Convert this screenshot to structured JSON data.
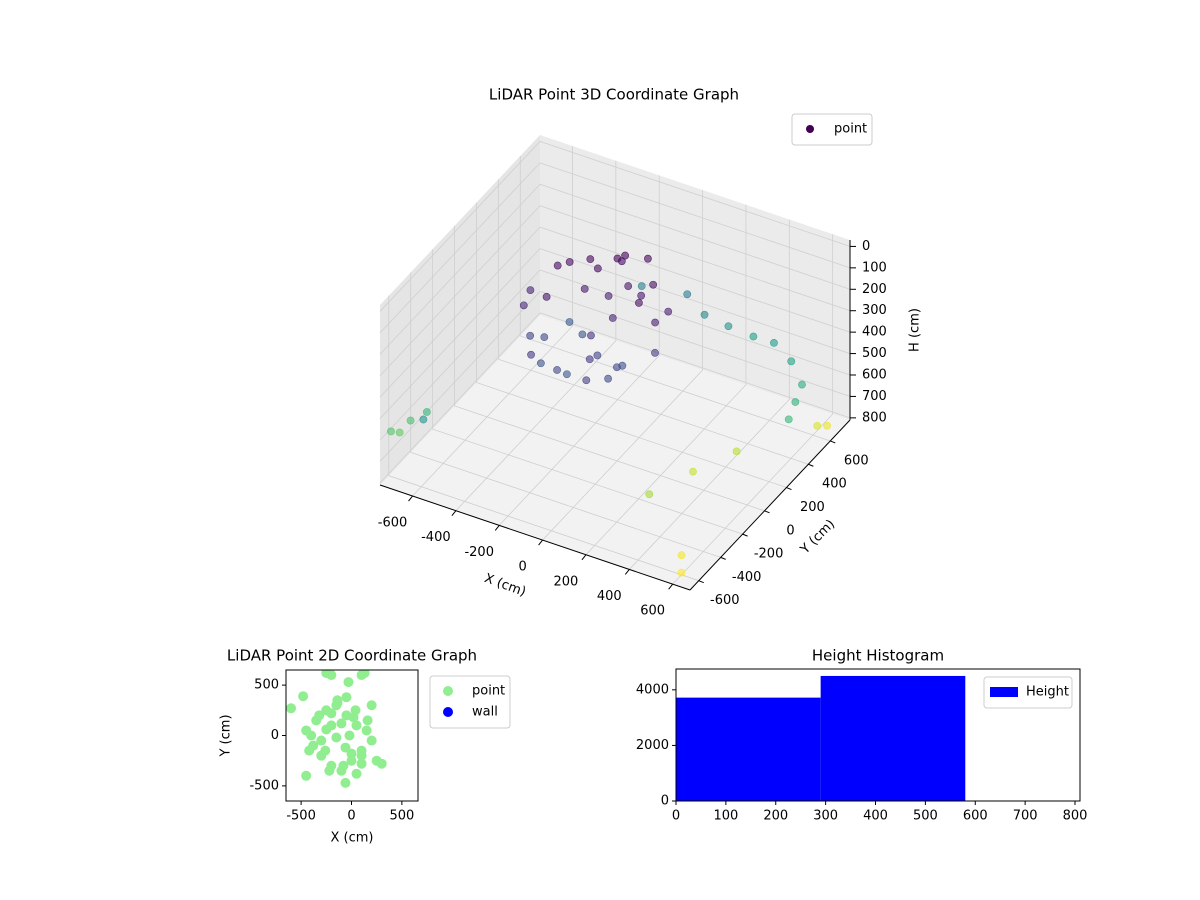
{
  "chart_data": [
    {
      "type": "scatter3d",
      "title": "LiDAR Point 3D Coordinate Graph",
      "xlabel": "X (cm)",
      "ylabel": "Y (cm)",
      "zlabel": "H (cm)",
      "xlim": [
        -750,
        680
      ],
      "ylim": [
        -680,
        780
      ],
      "zlim": [
        810,
        -30
      ],
      "xticks": [
        -600,
        -400,
        -200,
        0,
        200,
        400,
        600
      ],
      "yticks": [
        -600,
        -400,
        -200,
        0,
        200,
        400,
        600
      ],
      "zticks": [
        0,
        100,
        200,
        300,
        400,
        500,
        600,
        700,
        800
      ],
      "grid": true,
      "cmap": "viridis",
      "legend": "upper right",
      "series": [
        {
          "name": "point",
          "color": "#440154",
          "x": [
            -400,
            -350,
            -300,
            -250,
            -200,
            -150,
            -100,
            -50,
            0,
            50,
            100,
            150,
            200,
            -380,
            -320,
            -260,
            -200,
            -140,
            -80,
            -20,
            40,
            100,
            160,
            -300,
            -220,
            -140,
            -60,
            20,
            100,
            -250,
            -150,
            -50,
            50,
            -200,
            -100,
            0,
            -740,
            -720,
            -700,
            -650,
            -560,
            100,
            200,
            300,
            400,
            500,
            600,
            620,
            640,
            300,
            350,
            450,
            550,
            600,
            -200,
            0,
            640,
            620
          ],
          "y": [
            0,
            150,
            -200,
            250,
            -300,
            300,
            -350,
            200,
            -250,
            100,
            -150,
            50,
            -50,
            -100,
            200,
            -150,
            100,
            350,
            -300,
            0,
            250,
            -200,
            150,
            -50,
            -350,
            320,
            -120,
            180,
            -280,
            60,
            -20,
            380,
            -380,
            220,
            120,
            -180,
            -600,
            -560,
            -500,
            -450,
            -660,
            600,
            620,
            650,
            640,
            600,
            500,
            400,
            300,
            -300,
            0,
            200,
            -500,
            -600,
            620,
            640,
            650,
            600
          ],
          "z": [
            150,
            100,
            220,
            90,
            260,
            80,
            230,
            120,
            200,
            110,
            250,
            140,
            210,
            160,
            100,
            240,
            130,
            90,
            270,
            150,
            110,
            230,
            140,
            120,
            200,
            100,
            180,
            130,
            240,
            280,
            260,
            90,
            210,
            100,
            140,
            220,
            600,
            620,
            590,
            560,
            450,
            420,
            450,
            480,
            470,
            500,
            520,
            540,
            560,
            700,
            740,
            720,
            790,
            800,
            400,
            380,
            780,
            760
          ]
        }
      ]
    },
    {
      "type": "scatter",
      "title": "LiDAR Point 2D Coordinate Graph",
      "xlabel": "X (cm)",
      "ylabel": "Y (cm)",
      "xlim": [
        -650,
        660
      ],
      "ylim": [
        -650,
        650
      ],
      "xticks": [
        -500,
        0,
        500
      ],
      "yticks": [
        -500,
        0,
        500
      ],
      "legend": "outside right",
      "series": [
        {
          "name": "point",
          "color": "#90ee90",
          "x": [
            -400,
            -350,
            -300,
            -250,
            -200,
            -150,
            -100,
            -50,
            0,
            50,
            100,
            150,
            200,
            -380,
            -320,
            -260,
            -200,
            -140,
            -80,
            -20,
            40,
            100,
            160,
            -300,
            -220,
            -140,
            -60,
            20,
            100,
            -250,
            -150,
            -50,
            50,
            -200,
            -100,
            0,
            -450,
            -420,
            250,
            300,
            200,
            -600,
            -480,
            -450,
            -250,
            -200,
            -30,
            100,
            130,
            -60
          ],
          "y": [
            0,
            150,
            -200,
            250,
            -300,
            300,
            -350,
            200,
            -250,
            100,
            -150,
            50,
            -50,
            -100,
            200,
            -150,
            100,
            350,
            -300,
            0,
            250,
            -200,
            150,
            -50,
            -350,
            320,
            -120,
            180,
            -280,
            60,
            -20,
            380,
            -380,
            220,
            120,
            -180,
            50,
            -150,
            -250,
            -280,
            300,
            270,
            390,
            -400,
            620,
            600,
            530,
            600,
            620,
            -470
          ]
        },
        {
          "name": "wall",
          "color": "#0000ff",
          "x": [],
          "y": []
        }
      ]
    },
    {
      "type": "histogram",
      "title": "Height Histogram",
      "bins": [
        0,
        290,
        580
      ],
      "counts": [
        3720,
        4500
      ],
      "color": "#0000ff",
      "name": "Height",
      "xlim": [
        0,
        810
      ],
      "ylim": [
        0,
        4750
      ],
      "xticks": [
        0,
        100,
        200,
        300,
        400,
        500,
        600,
        700,
        800
      ],
      "yticks": [
        0,
        2000,
        4000
      ],
      "legend": "upper right"
    }
  ]
}
